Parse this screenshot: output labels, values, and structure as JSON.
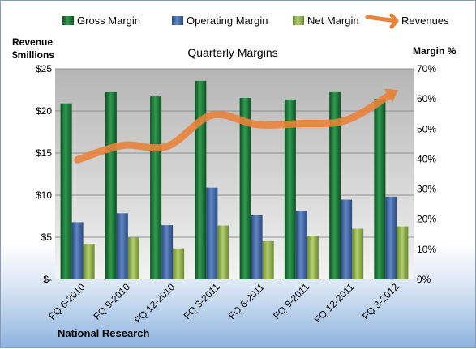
{
  "chart_data": {
    "type": "bar",
    "title": "Quarterly Margins",
    "ylabel_left_line1": "Revenue",
    "ylabel_left_line2": "$millions",
    "ylabel_right": "Margin %",
    "source": "National Research",
    "categories": [
      "FQ 6-2010",
      "FQ 9-2010",
      "FQ 12-2010",
      "FQ 3-2011",
      "FQ 6-2011",
      "FQ 9-2011",
      "FQ 12-2011",
      "FQ 3-2012"
    ],
    "left_ticks": [
      "$-",
      "$5",
      "$10",
      "$15",
      "$20",
      "$25"
    ],
    "right_ticks": [
      "0%",
      "10%",
      "20%",
      "30%",
      "40%",
      "50%",
      "60%",
      "70%"
    ],
    "ylim_left": [
      0,
      25
    ],
    "ylim_right": [
      0,
      70
    ],
    "grid": true,
    "legend_position": "top",
    "series": [
      {
        "name": "Gross Margin",
        "axis": "right",
        "kind": "bar",
        "color": "#1f7a3a",
        "values": [
          58.5,
          62.3,
          60.8,
          66.0,
          60.3,
          59.8,
          62.5,
          60.0
        ]
      },
      {
        "name": "Operating Margin",
        "axis": "right",
        "kind": "bar",
        "color": "#3f67a8",
        "values": [
          19.0,
          22.0,
          18.0,
          30.5,
          21.3,
          22.8,
          26.5,
          27.5
        ]
      },
      {
        "name": "Net Margin",
        "axis": "right",
        "kind": "bar",
        "color": "#8fb04a",
        "values": [
          11.8,
          13.9,
          10.3,
          17.9,
          12.7,
          14.5,
          16.8,
          17.6
        ]
      },
      {
        "name": "Revenues",
        "axis": "left",
        "kind": "line",
        "color": "#e8833a",
        "values": [
          14.2,
          15.9,
          15.8,
          19.5,
          18.4,
          18.5,
          18.9,
          22.0
        ]
      }
    ]
  }
}
